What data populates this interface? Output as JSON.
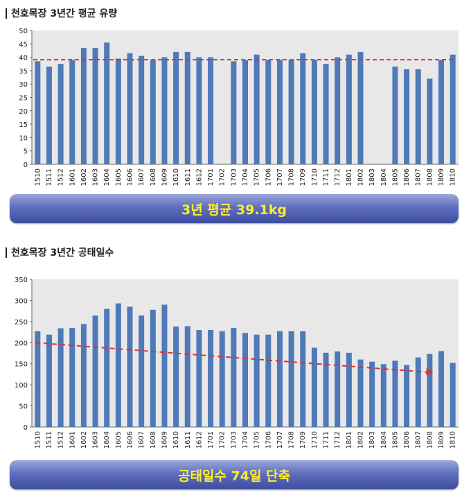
{
  "charts": {
    "milk": {
      "title": "천호목장 3년간 평균 유량",
      "banner": "3년 평균 39.1kg"
    },
    "idle": {
      "title": "천호목장 3년간 공태일수",
      "banner": "공태일수 74일 단축"
    }
  },
  "colors": {
    "bar": "#4f79b8",
    "trend": "#e0302c",
    "plot_bg": "#e8e8e8",
    "banner_text": "#ffee2a"
  },
  "chart_data": [
    {
      "type": "bar",
      "categories": [
        "1510",
        "1511",
        "1512",
        "1601",
        "1602",
        "1603",
        "1604",
        "1605",
        "1606",
        "1607",
        "1608",
        "1609",
        "1610",
        "1611",
        "1612",
        "1701",
        "1702",
        "1703",
        "1704",
        "1705",
        "1706",
        "1707",
        "1708",
        "1709",
        "1710",
        "1711",
        "1712",
        "1801",
        "1802",
        "1803",
        "1804",
        "1805",
        "1806",
        "1807",
        "1808",
        "1809",
        "1810"
      ],
      "values": [
        38.5,
        36.5,
        37.5,
        39,
        43.5,
        43.5,
        45.5,
        39.5,
        41.5,
        40.5,
        39,
        40,
        42,
        42,
        40,
        40,
        null,
        38.5,
        39,
        41,
        39,
        39,
        39,
        41.5,
        39,
        37.5,
        40,
        41,
        42,
        null,
        null,
        36.5,
        35.5,
        35.5,
        32,
        39,
        41
      ],
      "reference_line": 39.1,
      "ylim": [
        0,
        50
      ],
      "yticks": [
        0,
        5,
        10,
        15,
        20,
        25,
        30,
        35,
        40,
        45,
        50
      ]
    },
    {
      "type": "bar",
      "categories": [
        "1510",
        "1511",
        "1512",
        "1601",
        "1602",
        "1603",
        "1604",
        "1605",
        "1606",
        "1607",
        "1608",
        "1609",
        "1610",
        "1611",
        "1612",
        "1701",
        "1702",
        "1703",
        "1704",
        "1705",
        "1706",
        "1707",
        "1708",
        "1709",
        "1710",
        "1711",
        "1712",
        "1801",
        "1802",
        "1803",
        "1804",
        "1805",
        "1806",
        "1807",
        "1808",
        "1809",
        "1810"
      ],
      "values": [
        227,
        219,
        234,
        235,
        244,
        264,
        280,
        293,
        285,
        264,
        278,
        290,
        238,
        239,
        230,
        230,
        227,
        235,
        223,
        219,
        219,
        227,
        227,
        227,
        188,
        176,
        179,
        176,
        160,
        155,
        149,
        157,
        147,
        165,
        173,
        180,
        152
      ],
      "trend_line": {
        "x": [
          "1510",
          "1808"
        ],
        "y": [
          200,
          130
        ]
      },
      "ylim": [
        0,
        350
      ],
      "yticks": [
        0,
        50,
        100,
        150,
        200,
        250,
        300,
        350
      ]
    }
  ]
}
